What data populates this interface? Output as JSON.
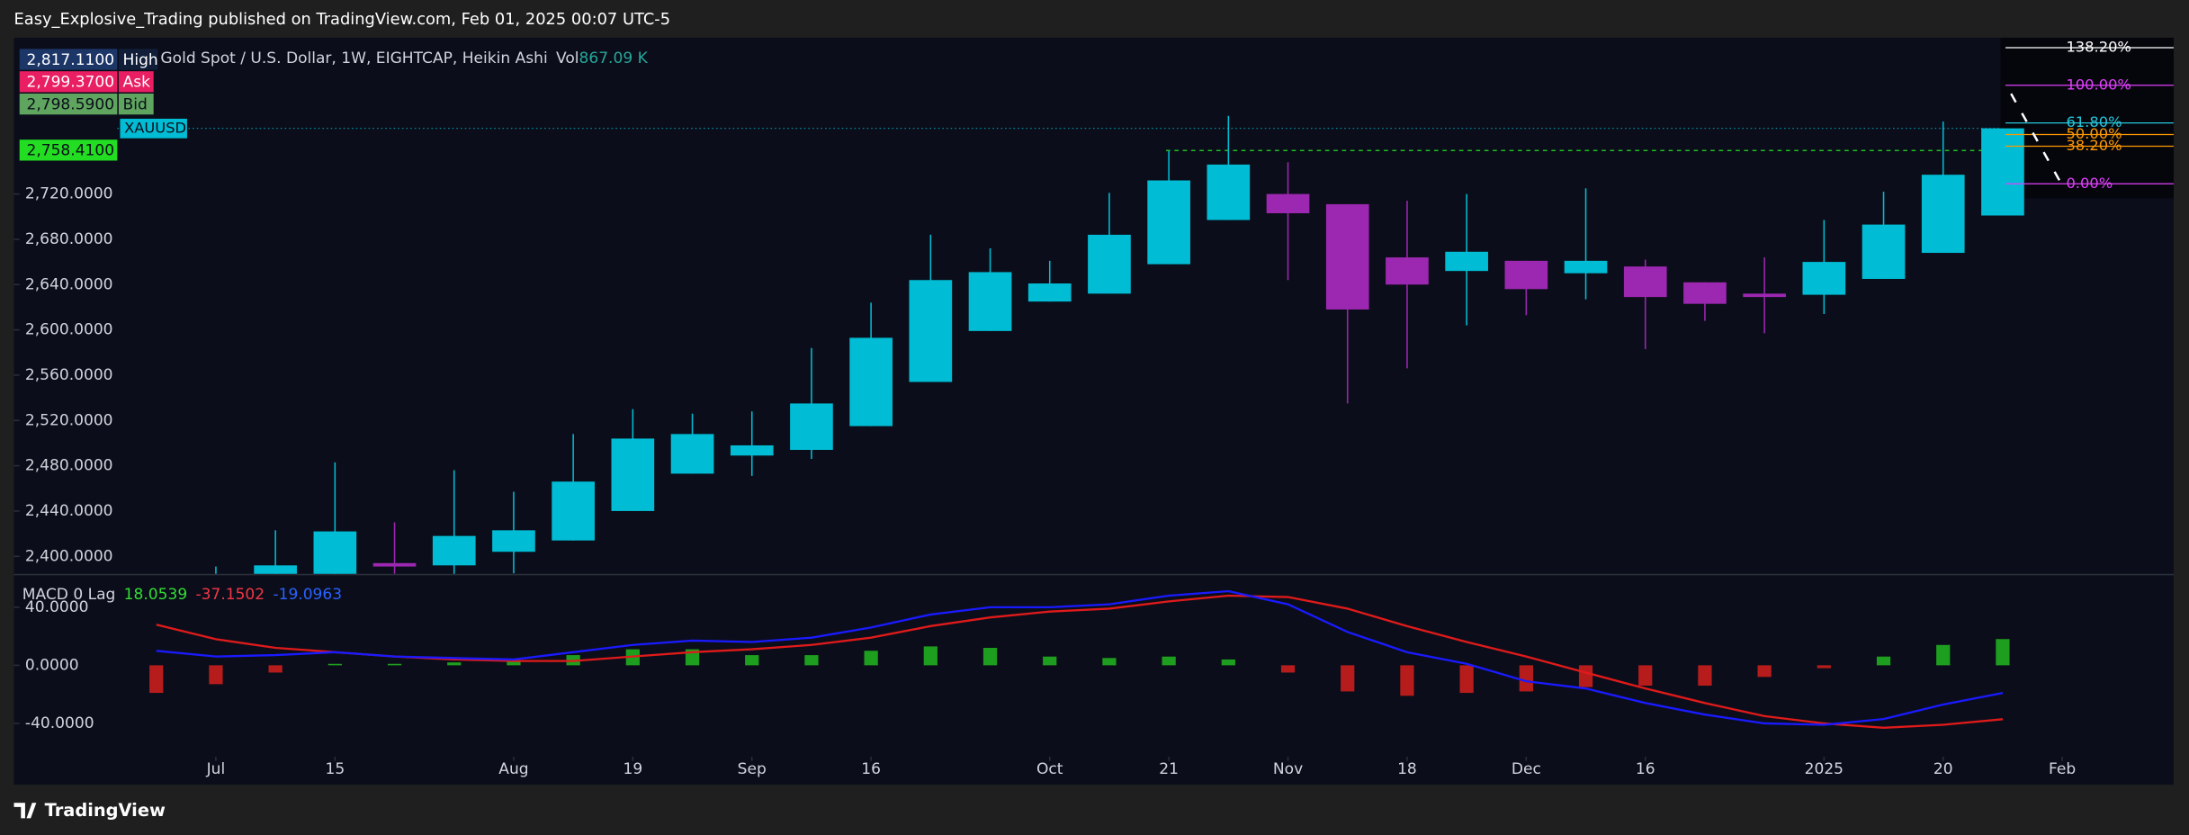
{
  "header": "Easy_Explosive_Trading published on TradingView.com, Feb 01, 2025 00:07 UTC-5",
  "footer": "TradingView",
  "chart_data": [
    {
      "type": "candlestick",
      "title": "Gold Spot / U.S. Dollar, 1W, EIGHTCAP, Heikin Ashi",
      "volume_label": "Vol",
      "volume": "867.09 K",
      "quotes": [
        {
          "name": "High",
          "price": "2,817.1100",
          "color": "#1c3668",
          "text_color": "#ffffff"
        },
        {
          "name": "Ask",
          "price": "2,799.3700",
          "color": "#e91e63",
          "text_color": "#ffffff"
        },
        {
          "name": "Bid",
          "price": "2,798.5900",
          "color": "#5fa55f",
          "text_color": "#0b0e1a"
        }
      ],
      "symbol": "XAUUSD",
      "symbol_color": "#00bcd4",
      "last_price": {
        "value": 2758.41,
        "label": "2,758.4100"
      },
      "last_price_color": "#22dd22",
      "up_color": "#00bcd4",
      "down_color": "#9c27b0",
      "xlim": [
        -2.39,
        33.87
      ],
      "xticks": [
        {
          "value": 1,
          "label": "Jul"
        },
        {
          "value": 3,
          "label": "15"
        },
        {
          "value": 6,
          "label": "Aug"
        },
        {
          "value": 8,
          "label": "19"
        },
        {
          "value": 10,
          "label": "Sep"
        },
        {
          "value": 12,
          "label": "16"
        },
        {
          "value": 15,
          "label": "Oct"
        },
        {
          "value": 17,
          "label": "21"
        },
        {
          "value": 19,
          "label": "Nov"
        },
        {
          "value": 21,
          "label": "18"
        },
        {
          "value": 23,
          "label": "Dec"
        },
        {
          "value": 25,
          "label": "16"
        },
        {
          "value": 28,
          "label": "2025"
        },
        {
          "value": 30,
          "label": "20"
        },
        {
          "value": 32,
          "label": "Feb"
        }
      ],
      "ylim": [
        2384.5,
        2858
      ],
      "yticks": [
        {
          "value": 2400,
          "label": "2,400.0000"
        },
        {
          "value": 2440,
          "label": "2,440.0000"
        },
        {
          "value": 2480,
          "label": "2,480.0000"
        },
        {
          "value": 2520,
          "label": "2,520.0000"
        },
        {
          "value": 2560,
          "label": "2,560.0000"
        },
        {
          "value": 2600,
          "label": "2,600.0000"
        },
        {
          "value": 2640,
          "label": "2,640.0000"
        },
        {
          "value": 2680,
          "label": "2,680.0000"
        },
        {
          "value": 2720,
          "label": "2,720.0000"
        }
      ],
      "open": [
        null,
        2375,
        2383,
        2375,
        2394,
        2392,
        2404,
        2414,
        2440,
        2473,
        2489,
        2494,
        2515,
        2554,
        2599,
        2625,
        2632,
        2658,
        2697,
        2720,
        2711,
        2664,
        2652,
        2661,
        2650,
        2656,
        2642,
        2632,
        2631,
        2645,
        2668,
        2701
      ],
      "high": [
        null,
        2391,
        2423,
        2483,
        2430,
        2476,
        2457,
        2508,
        2530,
        2526,
        2528,
        2584,
        2624,
        2684,
        2672,
        2661,
        2721,
        2758,
        2789,
        2748,
        2711,
        2714,
        2720,
        2661,
        2725,
        2662,
        2642,
        2664,
        2697,
        2722,
        2784,
        2778
      ],
      "low": [
        null,
        2370,
        2370,
        2360,
        2370,
        2383,
        2385,
        2414,
        2440,
        2473,
        2471,
        2486,
        2515,
        2554,
        2599,
        2625,
        2632,
        2658,
        2697,
        2644,
        2535,
        2566,
        2604,
        2613,
        2627,
        2583,
        2608,
        2597,
        2614,
        2645,
        2668,
        2701
      ],
      "close": [
        null,
        2380,
        2392,
        2422,
        2391,
        2418,
        2423,
        2466,
        2504,
        2508,
        2498,
        2535,
        2593,
        2644,
        2651,
        2641,
        2684,
        2732,
        2746,
        2703,
        2618,
        2640,
        2669,
        2636,
        2661,
        2629,
        2623,
        2629,
        2660,
        2693,
        2737,
        2778
      ],
      "fib": {
        "start_price": 2729,
        "end_price": 2816,
        "levels": [
          {
            "value": 138.2,
            "label": "138.20%",
            "color": "#ffffff"
          },
          {
            "value": 100,
            "label": "100.00%",
            "color": "#e040fb"
          },
          {
            "value": 61.8,
            "label": "61.80%",
            "color": "#26c6da"
          },
          {
            "value": 50,
            "label": "50.00%",
            "color": "#ff9800"
          },
          {
            "value": 38.2,
            "label": "38.20%",
            "color": "#ff9800"
          },
          {
            "value": 0,
            "label": "0.00%",
            "color": "#e040fb"
          }
        ]
      }
    },
    {
      "type": "macd",
      "title": "MACD 0 Lag",
      "ylim": [
        -63,
        62
      ],
      "yticks": [
        {
          "value": 40,
          "label": "40.0000"
        },
        {
          "value": 0,
          "label": "0.0000"
        },
        {
          "value": -40,
          "label": "-40.0000"
        }
      ],
      "histogram": {
        "up_color": "#1e9e1e",
        "down_color": "#b71c1c",
        "legend_color": "#33dd33",
        "values": [
          -19,
          -13,
          -5,
          1,
          1,
          2,
          3,
          7,
          11,
          11,
          7,
          7,
          10,
          13,
          12,
          6,
          5,
          6,
          4,
          -5,
          -18,
          -21,
          -19,
          -18,
          -15,
          -14,
          -14,
          -8,
          -2,
          6,
          14,
          18.0539
        ]
      },
      "series": [
        {
          "color": "#e01a1a",
          "legend_color": "#f23645",
          "values": [
            28,
            18,
            12,
            9,
            6,
            4,
            3,
            3,
            6,
            9,
            11,
            14,
            19,
            27,
            33,
            37,
            39,
            44,
            48,
            47,
            39,
            27,
            16,
            6,
            -5,
            -16,
            -26,
            -35,
            -40,
            -43,
            -41,
            -37.1502
          ]
        },
        {
          "color": "#1a1aff",
          "legend_color": "#2962ff",
          "values": [
            10,
            6,
            7,
            9,
            6,
            5,
            4,
            9,
            14,
            17,
            16,
            19,
            26,
            35,
            40,
            40,
            42,
            48,
            51,
            42,
            23,
            9,
            1,
            -11,
            -16,
            -26,
            -34,
            -40,
            -41,
            -37,
            -27,
            -19.0963
          ]
        }
      ]
    }
  ]
}
